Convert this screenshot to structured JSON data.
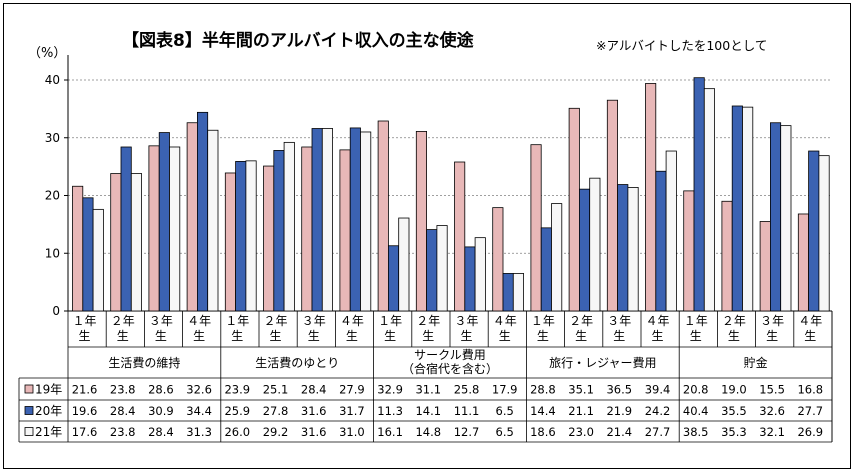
{
  "chart_data": {
    "type": "bar",
    "title": "【図表8】半年間のアルバイト収入の主な使途",
    "note": "※アルバイトしたを100として",
    "ylabel": "（%）",
    "ylim": [
      0,
      45
    ],
    "yticks": [
      0,
      10,
      20,
      30,
      40
    ],
    "grid": true,
    "groups": [
      {
        "label": "生活費の維持",
        "sublabel": ""
      },
      {
        "label": "生活費のゆとり",
        "sublabel": ""
      },
      {
        "label": "サークル費用",
        "sublabel": "（合宿代を含む）"
      },
      {
        "label": "旅行・レジャー費用",
        "sublabel": ""
      },
      {
        "label": "貯金",
        "sublabel": ""
      }
    ],
    "subcategories": [
      "１年\n生",
      "２年\n生",
      "３年\n生",
      "４年\n生"
    ],
    "series": [
      {
        "name": "19年",
        "color": "#e8b8b8",
        "values": [
          21.6,
          23.8,
          28.6,
          32.6,
          23.9,
          25.1,
          28.4,
          27.9,
          32.9,
          31.1,
          25.8,
          17.9,
          28.8,
          35.1,
          36.5,
          39.4,
          20.8,
          19.0,
          15.5,
          16.8
        ]
      },
      {
        "name": "20年",
        "color": "#3b62b2",
        "values": [
          19.6,
          28.4,
          30.9,
          34.4,
          25.9,
          27.8,
          31.6,
          31.7,
          11.3,
          14.1,
          11.1,
          6.5,
          14.4,
          21.1,
          21.9,
          24.2,
          40.4,
          35.5,
          32.6,
          27.7
        ]
      },
      {
        "name": "21年",
        "color": "#f7f7f7",
        "values": [
          17.6,
          23.8,
          28.4,
          31.3,
          26.0,
          29.2,
          31.6,
          31.0,
          16.1,
          14.8,
          12.7,
          6.5,
          18.6,
          23.0,
          21.4,
          27.7,
          38.5,
          35.3,
          32.1,
          26.9
        ]
      }
    ],
    "table_values": [
      [
        "21.6",
        "23.8",
        "28.6",
        "32.6",
        "23.9",
        "25.1",
        "28.4",
        "27.9",
        "32.9",
        "31.1",
        "25.8",
        "17.9",
        "28.8",
        "35.1",
        "36.5",
        "39.4",
        "20.8",
        "19.0",
        "15.5",
        "16.8"
      ],
      [
        "19.6",
        "28.4",
        "30.9",
        "34.4",
        "25.9",
        "27.8",
        "31.6",
        "31.7",
        "11.3",
        "14.1",
        "11.1",
        "6.5",
        "14.4",
        "21.1",
        "21.9",
        "24.2",
        "40.4",
        "35.5",
        "32.6",
        "27.7"
      ],
      [
        "17.6",
        "23.8",
        "28.4",
        "31.3",
        "26.0",
        "29.2",
        "31.6",
        "31.0",
        "16.1",
        "14.8",
        "12.7",
        "6.5",
        "18.6",
        "23.0",
        "21.4",
        "27.7",
        "38.5",
        "35.3",
        "32.1",
        "26.9"
      ]
    ]
  }
}
